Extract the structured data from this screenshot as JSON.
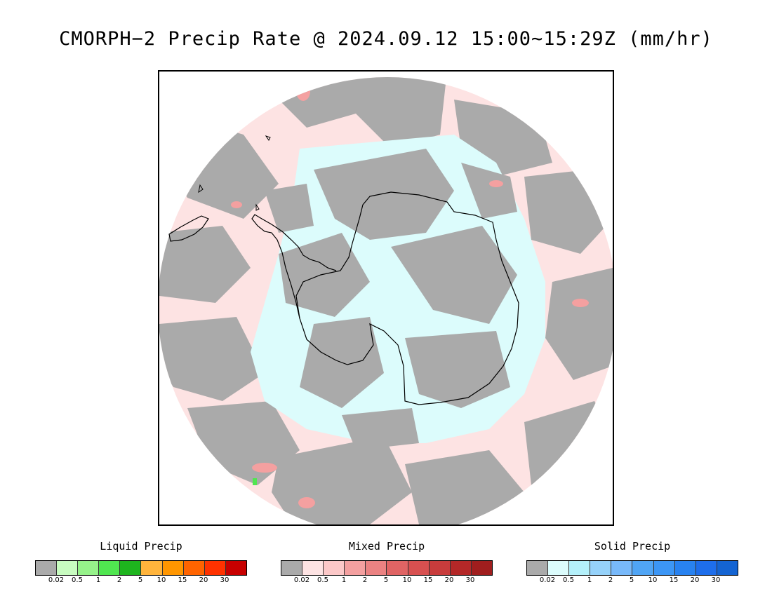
{
  "title": "CMORPH−2 Precip Rate @ 2024.09.12 15:00~15:29Z (mm/hr)",
  "map": {
    "projection": "south-polar-stereographic",
    "colors": {
      "no_precip": "#aaaaaa",
      "mixed_light": "#fde3e3",
      "solid_light": "#dcfcfc",
      "coastline": "#000000"
    }
  },
  "legends": [
    {
      "id": "liquid",
      "title": "Liquid Precip",
      "colors": [
        "#aaaaaa",
        "#c8fcc0",
        "#96f28a",
        "#50e650",
        "#1eb41e",
        "#ffb43c",
        "#ff9600",
        "#ff6400",
        "#ff3200",
        "#c80000"
      ],
      "ticks": [
        "0.02",
        "0.5",
        "1",
        "2",
        "5",
        "10",
        "15",
        "20",
        "30"
      ]
    },
    {
      "id": "mixed",
      "title": "Mixed Precip",
      "colors": [
        "#aaaaaa",
        "#fde3e3",
        "#fcc8c8",
        "#f4a0a0",
        "#eb8282",
        "#e06464",
        "#d75050",
        "#c83c3c",
        "#b42828",
        "#a01e1e"
      ],
      "ticks": [
        "0.02",
        "0.5",
        "1",
        "2",
        "5",
        "10",
        "15",
        "20",
        "30"
      ]
    },
    {
      "id": "solid",
      "title": "Solid Precip",
      "colors": [
        "#aaaaaa",
        "#dcfcfc",
        "#b4f0fa",
        "#96d2fa",
        "#78b9fa",
        "#50a5f5",
        "#3c96f5",
        "#2882f0",
        "#1e6eeb",
        "#1464d2"
      ],
      "ticks": [
        "0.02",
        "0.5",
        "1",
        "2",
        "5",
        "10",
        "15",
        "20",
        "30"
      ]
    }
  ]
}
